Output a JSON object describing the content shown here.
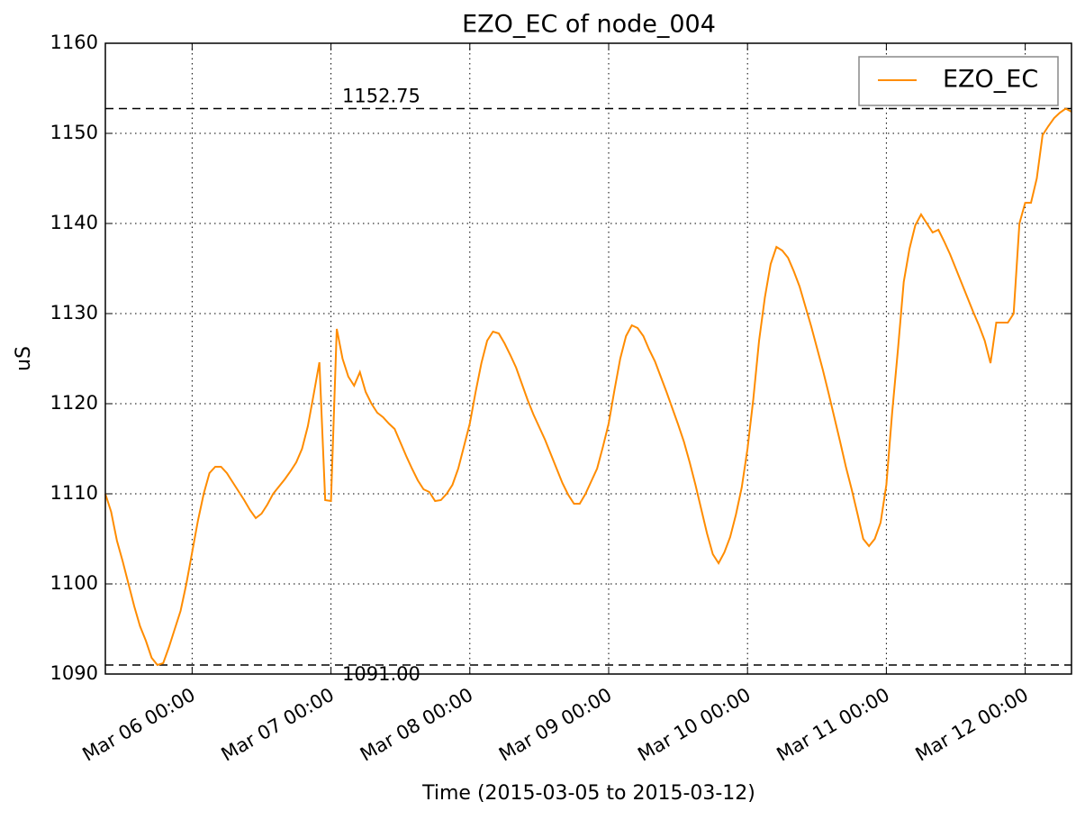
{
  "chart_data": {
    "type": "line",
    "title": "EZO_EC of node_004",
    "xlabel": "Time (2015-03-05 to 2015-03-12)",
    "ylabel": "uS",
    "x": [
      "2015-03-05 09:00",
      "2015-03-05 10:00",
      "2015-03-05 11:00",
      "2015-03-05 12:00",
      "2015-03-05 13:00",
      "2015-03-05 14:00",
      "2015-03-05 15:00",
      "2015-03-05 16:00",
      "2015-03-05 17:00",
      "2015-03-05 18:00",
      "2015-03-05 19:00",
      "2015-03-05 20:00",
      "2015-03-05 21:00",
      "2015-03-05 22:00",
      "2015-03-05 23:00",
      "2015-03-06 00:00",
      "2015-03-06 01:00",
      "2015-03-06 02:00",
      "2015-03-06 03:00",
      "2015-03-06 04:00",
      "2015-03-06 05:00",
      "2015-03-06 06:00",
      "2015-03-06 07:00",
      "2015-03-06 08:00",
      "2015-03-06 09:00",
      "2015-03-06 10:00",
      "2015-03-06 11:00",
      "2015-03-06 12:00",
      "2015-03-06 13:00",
      "2015-03-06 14:00",
      "2015-03-06 15:00",
      "2015-03-06 16:00",
      "2015-03-06 17:00",
      "2015-03-06 18:00",
      "2015-03-06 19:00",
      "2015-03-06 20:00",
      "2015-03-06 21:00",
      "2015-03-06 22:00",
      "2015-03-06 23:00",
      "2015-03-07 00:00",
      "2015-03-07 01:00",
      "2015-03-07 02:00",
      "2015-03-07 03:00",
      "2015-03-07 04:00",
      "2015-03-07 05:00",
      "2015-03-07 06:00",
      "2015-03-07 07:00",
      "2015-03-07 08:00",
      "2015-03-07 09:00",
      "2015-03-07 10:00",
      "2015-03-07 11:00",
      "2015-03-07 12:00",
      "2015-03-07 13:00",
      "2015-03-07 14:00",
      "2015-03-07 15:00",
      "2015-03-07 16:00",
      "2015-03-07 17:00",
      "2015-03-07 18:00",
      "2015-03-07 19:00",
      "2015-03-07 20:00",
      "2015-03-07 21:00",
      "2015-03-07 22:00",
      "2015-03-07 23:00",
      "2015-03-08 00:00",
      "2015-03-08 01:00",
      "2015-03-08 02:00",
      "2015-03-08 03:00",
      "2015-03-08 04:00",
      "2015-03-08 05:00",
      "2015-03-08 06:00",
      "2015-03-08 07:00",
      "2015-03-08 08:00",
      "2015-03-08 09:00",
      "2015-03-08 10:00",
      "2015-03-08 11:00",
      "2015-03-08 12:00",
      "2015-03-08 13:00",
      "2015-03-08 14:00",
      "2015-03-08 15:00",
      "2015-03-08 16:00",
      "2015-03-08 17:00",
      "2015-03-08 18:00",
      "2015-03-08 19:00",
      "2015-03-08 20:00",
      "2015-03-08 21:00",
      "2015-03-08 22:00",
      "2015-03-08 23:00",
      "2015-03-09 00:00",
      "2015-03-09 01:00",
      "2015-03-09 02:00",
      "2015-03-09 03:00",
      "2015-03-09 04:00",
      "2015-03-09 05:00",
      "2015-03-09 06:00",
      "2015-03-09 07:00",
      "2015-03-09 08:00",
      "2015-03-09 09:00",
      "2015-03-09 10:00",
      "2015-03-09 11:00",
      "2015-03-09 12:00",
      "2015-03-09 13:00",
      "2015-03-09 14:00",
      "2015-03-09 15:00",
      "2015-03-09 16:00",
      "2015-03-09 17:00",
      "2015-03-09 18:00",
      "2015-03-09 19:00",
      "2015-03-09 20:00",
      "2015-03-09 21:00",
      "2015-03-09 22:00",
      "2015-03-09 23:00",
      "2015-03-10 00:00",
      "2015-03-10 01:00",
      "2015-03-10 02:00",
      "2015-03-10 03:00",
      "2015-03-10 04:00",
      "2015-03-10 05:00",
      "2015-03-10 06:00",
      "2015-03-10 07:00",
      "2015-03-10 08:00",
      "2015-03-10 09:00",
      "2015-03-10 10:00",
      "2015-03-10 11:00",
      "2015-03-10 12:00",
      "2015-03-10 13:00",
      "2015-03-10 14:00",
      "2015-03-10 15:00",
      "2015-03-10 16:00",
      "2015-03-10 17:00",
      "2015-03-10 18:00",
      "2015-03-10 19:00",
      "2015-03-10 20:00",
      "2015-03-10 21:00",
      "2015-03-10 22:00",
      "2015-03-10 23:00",
      "2015-03-11 00:00",
      "2015-03-11 01:00",
      "2015-03-11 02:00",
      "2015-03-11 03:00",
      "2015-03-11 04:00",
      "2015-03-11 05:00",
      "2015-03-11 06:00",
      "2015-03-11 07:00",
      "2015-03-11 08:00",
      "2015-03-11 09:00",
      "2015-03-11 10:00",
      "2015-03-11 11:00",
      "2015-03-11 12:00",
      "2015-03-11 13:00",
      "2015-03-11 14:00",
      "2015-03-11 15:00",
      "2015-03-11 16:00",
      "2015-03-11 17:00",
      "2015-03-11 18:00",
      "2015-03-11 19:00",
      "2015-03-11 20:00",
      "2015-03-11 21:00",
      "2015-03-11 22:00",
      "2015-03-11 23:00",
      "2015-03-12 00:00",
      "2015-03-12 01:00",
      "2015-03-12 02:00",
      "2015-03-12 03:00",
      "2015-03-12 04:00",
      "2015-03-12 05:00",
      "2015-03-12 06:00",
      "2015-03-12 07:00",
      "2015-03-12 08:00"
    ],
    "series": [
      {
        "name": "EZO_EC",
        "color": "#ff8c00",
        "values": [
          1110,
          1108,
          1104.8,
          1102.5,
          1100,
          1097.5,
          1095.3,
          1093.7,
          1091.8,
          1091,
          1091.2,
          1093,
          1095,
          1097,
          1100,
          1103.5,
          1107,
          1110,
          1112.3,
          1113,
          1113,
          1112.3,
          1111.3,
          1110.3,
          1109.3,
          1108.2,
          1107.3,
          1107.8,
          1108.8,
          1110,
          1110.8,
          1111.6,
          1112.5,
          1113.5,
          1115,
          1117.5,
          1121,
          1124.6,
          1109.3,
          1109.2,
          1128.3,
          1125,
          1123,
          1122,
          1123.5,
          1121.3,
          1120,
          1119,
          1118.5,
          1117.8,
          1117.2,
          1115.7,
          1114.2,
          1112.8,
          1111.5,
          1110.5,
          1110.2,
          1109.2,
          1109.3,
          1110,
          1111,
          1112.8,
          1115.3,
          1117.8,
          1121.3,
          1124.5,
          1127,
          1128,
          1127.8,
          1126.7,
          1125.4,
          1124,
          1122.2,
          1120.4,
          1118.8,
          1117.4,
          1116,
          1114.4,
          1112.8,
          1111.2,
          1109.9,
          1108.9,
          1108.9,
          1110,
          1111.4,
          1112.8,
          1115.2,
          1117.8,
          1121.5,
          1125,
          1127.5,
          1128.7,
          1128.4,
          1127.5,
          1126,
          1124.7,
          1123,
          1121.3,
          1119.5,
          1117.7,
          1115.8,
          1113.5,
          1111,
          1108.3,
          1105.6,
          1103.3,
          1102.3,
          1103.5,
          1105.2,
          1107.7,
          1110.7,
          1115,
          1120.5,
          1127,
          1131.8,
          1135.5,
          1137.4,
          1137,
          1136.2,
          1134.7,
          1133,
          1130.8,
          1128.6,
          1126.2,
          1123.8,
          1121.2,
          1118.5,
          1115.8,
          1113,
          1110.5,
          1107.8,
          1105,
          1104.2,
          1105,
          1106.8,
          1111,
          1119,
          1126,
          1133.5,
          1137.2,
          1139.8,
          1141,
          1140,
          1139,
          1139.3,
          1138,
          1136.6,
          1135,
          1133.4,
          1131.8,
          1130.2,
          1128.7,
          1127,
          1124.5,
          1129,
          1129,
          1129,
          1130,
          1140,
          1142.3,
          1142.3,
          1145,
          1149.8,
          1150.8,
          1151.7,
          1152.3,
          1152.75,
          1152.4
        ]
      }
    ],
    "hlines": [
      {
        "value": 1152.75,
        "label": "1152.75"
      },
      {
        "value": 1091,
        "label": "1091.00"
      }
    ],
    "xlim": [
      "2015-03-05 09:00",
      "2015-03-12 08:00"
    ],
    "xticks": [
      {
        "value": "2015-03-06 00:00",
        "label": "Mar 06 00:00"
      },
      {
        "value": "2015-03-07 00:00",
        "label": "Mar 07 00:00"
      },
      {
        "value": "2015-03-08 00:00",
        "label": "Mar 08 00:00"
      },
      {
        "value": "2015-03-09 00:00",
        "label": "Mar 09 00:00"
      },
      {
        "value": "2015-03-10 00:00",
        "label": "Mar 10 00:00"
      },
      {
        "value": "2015-03-11 00:00",
        "label": "Mar 11 00:00"
      },
      {
        "value": "2015-03-12 00:00",
        "label": "Mar 12 00:00"
      }
    ],
    "ylim": [
      1090,
      1160
    ],
    "yticks": [
      1090,
      1100,
      1110,
      1120,
      1130,
      1140,
      1150,
      1160
    ],
    "grid": true,
    "legend": "upper right"
  }
}
